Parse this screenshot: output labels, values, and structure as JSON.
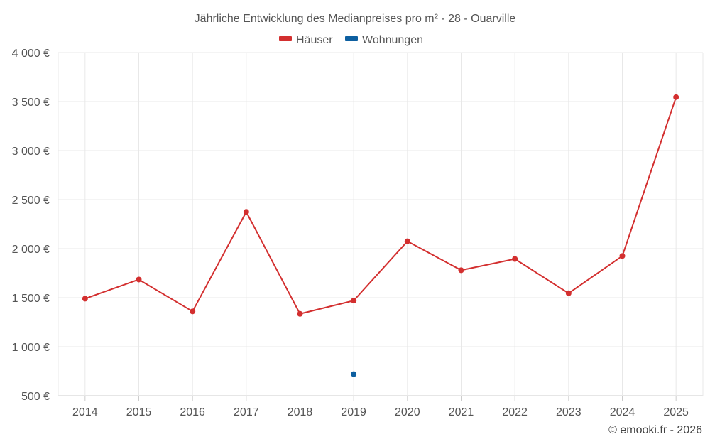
{
  "chart_data": {
    "type": "line",
    "title": "Jährliche Entwicklung des Medianpreises pro m² - 28 - Ouarville",
    "categories": [
      "2014",
      "2015",
      "2016",
      "2017",
      "2018",
      "2019",
      "2020",
      "2021",
      "2022",
      "2023",
      "2024",
      "2025"
    ],
    "series": [
      {
        "name": "Häuser",
        "color": "#d32f2f",
        "values": [
          1490,
          1685,
          1360,
          2375,
          1335,
          1470,
          2075,
          1780,
          1895,
          1545,
          1925,
          3545
        ]
      },
      {
        "name": "Wohnungen",
        "color": "#0d5fa0",
        "values": [
          null,
          null,
          null,
          null,
          null,
          720,
          null,
          null,
          null,
          null,
          null,
          null
        ]
      }
    ],
    "ylim": [
      500,
      4000
    ],
    "yticks": [
      500,
      1000,
      1500,
      2000,
      2500,
      3000,
      3500,
      4000
    ],
    "ytick_labels": [
      "500 €",
      "1 000 €",
      "1 500 €",
      "2 000 €",
      "2 500 €",
      "3 000 €",
      "3 500 €",
      "4 000 €"
    ],
    "grid": true,
    "legend_position": "top-center",
    "xlabel": "",
    "ylabel": ""
  },
  "credit": "© emooki.fr - 2026"
}
